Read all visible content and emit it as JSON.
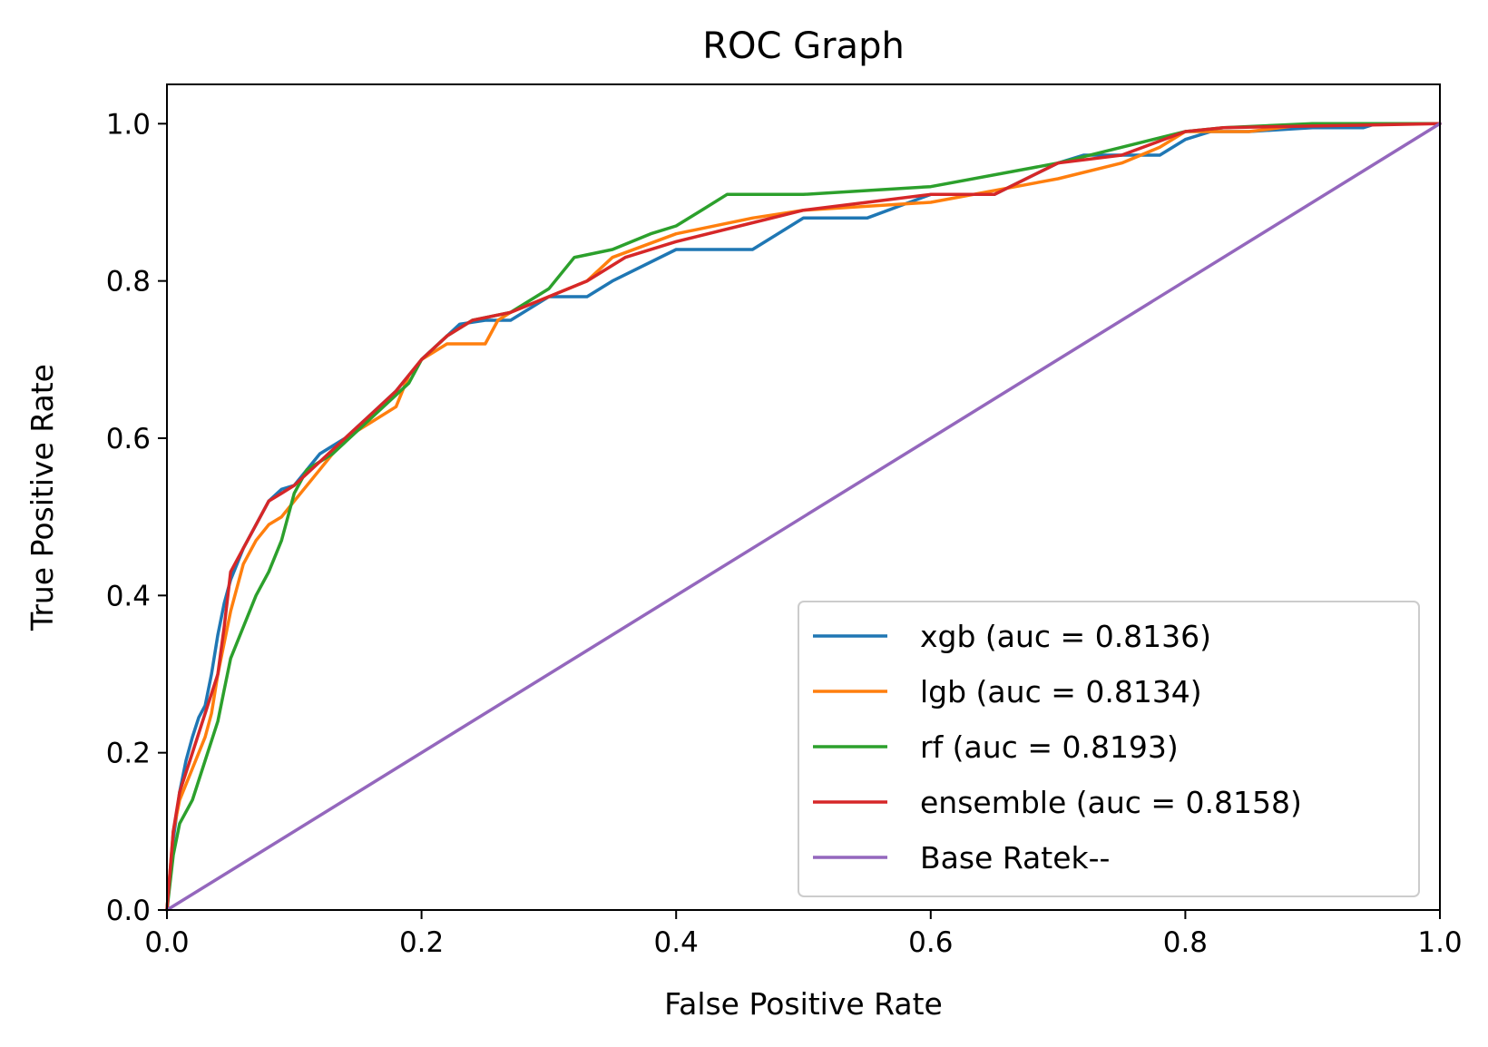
{
  "chart_data": {
    "type": "line",
    "title": "ROC Graph",
    "xlabel": "False Positive Rate",
    "ylabel": "True Positive Rate",
    "xlim": [
      0,
      1
    ],
    "ylim": [
      0,
      1.05
    ],
    "xticks": [
      "0.0",
      "0.2",
      "0.4",
      "0.6",
      "0.8",
      "1.0"
    ],
    "yticks": [
      "0.0",
      "0.2",
      "0.4",
      "0.6",
      "0.8",
      "1.0"
    ],
    "grid": false,
    "legend_position": "lower-right",
    "series": [
      {
        "name": "xgb (auc = 0.8136)",
        "color": "#1f77b4",
        "x": [
          0,
          0.005,
          0.01,
          0.015,
          0.02,
          0.025,
          0.03,
          0.035,
          0.04,
          0.045,
          0.05,
          0.055,
          0.06,
          0.07,
          0.08,
          0.09,
          0.1,
          0.11,
          0.12,
          0.14,
          0.16,
          0.18,
          0.2,
          0.22,
          0.23,
          0.25,
          0.27,
          0.3,
          0.33,
          0.35,
          0.4,
          0.46,
          0.5,
          0.55,
          0.6,
          0.65,
          0.7,
          0.72,
          0.78,
          0.8,
          0.82,
          0.85,
          0.9,
          0.94,
          0.95,
          1.0
        ],
        "y": [
          0,
          0.09,
          0.15,
          0.19,
          0.22,
          0.245,
          0.26,
          0.3,
          0.35,
          0.39,
          0.42,
          0.44,
          0.46,
          0.49,
          0.52,
          0.535,
          0.54,
          0.56,
          0.58,
          0.6,
          0.63,
          0.66,
          0.7,
          0.73,
          0.745,
          0.75,
          0.75,
          0.78,
          0.78,
          0.8,
          0.84,
          0.84,
          0.88,
          0.88,
          0.91,
          0.91,
          0.95,
          0.96,
          0.96,
          0.98,
          0.99,
          0.99,
          0.995,
          0.995,
          1.0,
          1.0
        ]
      },
      {
        "name": "lgb (auc = 0.8134)",
        "color": "#ff7f0e",
        "x": [
          0,
          0.005,
          0.01,
          0.02,
          0.03,
          0.035,
          0.04,
          0.05,
          0.06,
          0.07,
          0.08,
          0.09,
          0.1,
          0.12,
          0.14,
          0.16,
          0.18,
          0.19,
          0.2,
          0.22,
          0.25,
          0.26,
          0.27,
          0.3,
          0.33,
          0.35,
          0.4,
          0.46,
          0.5,
          0.6,
          0.7,
          0.75,
          0.78,
          0.8,
          0.85,
          0.9,
          1.0
        ],
        "y": [
          0,
          0.1,
          0.14,
          0.18,
          0.22,
          0.25,
          0.3,
          0.38,
          0.44,
          0.47,
          0.49,
          0.5,
          0.52,
          0.56,
          0.6,
          0.62,
          0.64,
          0.68,
          0.7,
          0.72,
          0.72,
          0.75,
          0.76,
          0.78,
          0.8,
          0.83,
          0.86,
          0.88,
          0.89,
          0.9,
          0.93,
          0.95,
          0.97,
          0.99,
          0.99,
          1.0,
          1.0
        ]
      },
      {
        "name": "rf (auc = 0.8193)",
        "color": "#2ca02c",
        "x": [
          0,
          0.005,
          0.01,
          0.02,
          0.03,
          0.04,
          0.045,
          0.05,
          0.06,
          0.07,
          0.08,
          0.09,
          0.1,
          0.11,
          0.13,
          0.15,
          0.17,
          0.19,
          0.2,
          0.22,
          0.24,
          0.27,
          0.3,
          0.32,
          0.35,
          0.38,
          0.4,
          0.42,
          0.44,
          0.5,
          0.6,
          0.7,
          0.75,
          0.8,
          0.83,
          0.9,
          1.0
        ],
        "y": [
          0,
          0.07,
          0.11,
          0.14,
          0.19,
          0.24,
          0.28,
          0.32,
          0.36,
          0.4,
          0.43,
          0.47,
          0.53,
          0.56,
          0.58,
          0.61,
          0.64,
          0.67,
          0.7,
          0.73,
          0.75,
          0.76,
          0.79,
          0.83,
          0.84,
          0.86,
          0.87,
          0.89,
          0.91,
          0.91,
          0.92,
          0.95,
          0.97,
          0.99,
          0.995,
          1.0,
          1.0
        ]
      },
      {
        "name": "ensemble (auc = 0.8158)",
        "color": "#d62728",
        "x": [
          0,
          0.005,
          0.01,
          0.02,
          0.03,
          0.04,
          0.045,
          0.05,
          0.06,
          0.07,
          0.08,
          0.09,
          0.1,
          0.12,
          0.14,
          0.16,
          0.18,
          0.2,
          0.22,
          0.24,
          0.27,
          0.3,
          0.33,
          0.36,
          0.4,
          0.45,
          0.5,
          0.55,
          0.6,
          0.65,
          0.7,
          0.75,
          0.8,
          0.83,
          1.0
        ],
        "y": [
          0,
          0.1,
          0.15,
          0.2,
          0.25,
          0.3,
          0.36,
          0.43,
          0.46,
          0.49,
          0.52,
          0.53,
          0.54,
          0.57,
          0.6,
          0.63,
          0.66,
          0.7,
          0.73,
          0.75,
          0.76,
          0.78,
          0.8,
          0.83,
          0.85,
          0.87,
          0.89,
          0.9,
          0.91,
          0.91,
          0.95,
          0.96,
          0.99,
          0.995,
          1.0
        ]
      },
      {
        "name": "Base Ratek--",
        "color": "#9467bd",
        "x": [
          0,
          1
        ],
        "y": [
          0,
          1
        ]
      }
    ]
  }
}
